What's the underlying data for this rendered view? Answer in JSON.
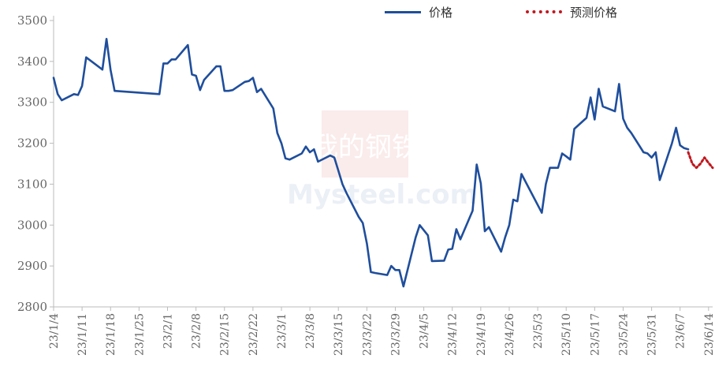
{
  "legend": {
    "price_label": "价格",
    "forecast_label": "预测价格"
  },
  "colors": {
    "price": "#1f4e9c",
    "forecast": "#c0181f",
    "axis": "#bbbbbb",
    "text": "#666666"
  },
  "watermark": {
    "brand_cn": "我的钢铁",
    "brand_en": "Mysteel.com"
  },
  "chart_data": {
    "type": "line",
    "ylim": [
      2800,
      3500
    ],
    "yticks": [
      2800,
      2900,
      3000,
      3100,
      3200,
      3300,
      3400,
      3500
    ],
    "xrange": [
      "2023-01-04",
      "2023-06-15"
    ],
    "xtick_labels": [
      "23/1/4",
      "23/1/11",
      "23/1/18",
      "23/1/25",
      "23/2/1",
      "23/2/8",
      "23/2/15",
      "23/2/22",
      "23/3/1",
      "23/3/8",
      "23/3/15",
      "23/3/22",
      "23/3/29",
      "23/4/5",
      "23/4/12",
      "23/4/19",
      "23/4/26",
      "23/5/3",
      "23/5/10",
      "23/5/17",
      "23/5/24",
      "23/5/31",
      "23/6/7",
      "23/6/14"
    ],
    "xtick_dates": [
      "2023-01-04",
      "2023-01-11",
      "2023-01-18",
      "2023-01-25",
      "2023-02-01",
      "2023-02-08",
      "2023-02-15",
      "2023-02-22",
      "2023-03-01",
      "2023-03-08",
      "2023-03-15",
      "2023-03-22",
      "2023-03-29",
      "2023-04-05",
      "2023-04-12",
      "2023-04-19",
      "2023-04-26",
      "2023-05-03",
      "2023-05-10",
      "2023-05-17",
      "2023-05-24",
      "2023-05-31",
      "2023-06-07",
      "2023-06-14"
    ],
    "series": [
      {
        "name": "价格",
        "style": "solid",
        "points": [
          [
            "2023-01-04",
            3360
          ],
          [
            "2023-01-05",
            3320
          ],
          [
            "2023-01-06",
            3305
          ],
          [
            "2023-01-09",
            3320
          ],
          [
            "2023-01-10",
            3318
          ],
          [
            "2023-01-11",
            3340
          ],
          [
            "2023-01-12",
            3410
          ],
          [
            "2023-01-16",
            3380
          ],
          [
            "2023-01-17",
            3455
          ],
          [
            "2023-01-18",
            3380
          ],
          [
            "2023-01-19",
            3328
          ],
          [
            "2023-01-30",
            3320
          ],
          [
            "2023-01-31",
            3395
          ],
          [
            "2023-02-01",
            3395
          ],
          [
            "2023-02-02",
            3405
          ],
          [
            "2023-02-03",
            3405
          ],
          [
            "2023-02-06",
            3440
          ],
          [
            "2023-02-07",
            3368
          ],
          [
            "2023-02-08",
            3365
          ],
          [
            "2023-02-09",
            3330
          ],
          [
            "2023-02-10",
            3355
          ],
          [
            "2023-02-13",
            3388
          ],
          [
            "2023-02-14",
            3388
          ],
          [
            "2023-02-15",
            3328
          ],
          [
            "2023-02-16",
            3328
          ],
          [
            "2023-02-17",
            3330
          ],
          [
            "2023-02-20",
            3350
          ],
          [
            "2023-02-21",
            3352
          ],
          [
            "2023-02-22",
            3360
          ],
          [
            "2023-02-23",
            3325
          ],
          [
            "2023-02-24",
            3333
          ],
          [
            "2023-02-27",
            3285
          ],
          [
            "2023-02-28",
            3225
          ],
          [
            "2023-03-01",
            3200
          ],
          [
            "2023-03-02",
            3163
          ],
          [
            "2023-03-03",
            3160
          ],
          [
            "2023-03-06",
            3175
          ],
          [
            "2023-03-07",
            3192
          ],
          [
            "2023-03-08",
            3178
          ],
          [
            "2023-03-09",
            3185
          ],
          [
            "2023-03-10",
            3155
          ],
          [
            "2023-03-13",
            3170
          ],
          [
            "2023-03-14",
            3165
          ],
          [
            "2023-03-15",
            3133
          ],
          [
            "2023-03-16",
            3100
          ],
          [
            "2023-03-17",
            3078
          ],
          [
            "2023-03-20",
            3020
          ],
          [
            "2023-03-21",
            3005
          ],
          [
            "2023-03-22",
            2955
          ],
          [
            "2023-03-23",
            2885
          ],
          [
            "2023-03-24",
            2883
          ],
          [
            "2023-03-27",
            2878
          ],
          [
            "2023-03-28",
            2900
          ],
          [
            "2023-03-29",
            2890
          ],
          [
            "2023-03-30",
            2890
          ],
          [
            "2023-03-31",
            2850
          ],
          [
            "2023-04-03",
            2970
          ],
          [
            "2023-04-04",
            3000
          ],
          [
            "2023-04-06",
            2975
          ],
          [
            "2023-04-07",
            2912
          ],
          [
            "2023-04-10",
            2913
          ],
          [
            "2023-04-11",
            2940
          ],
          [
            "2023-04-12",
            2942
          ],
          [
            "2023-04-13",
            2990
          ],
          [
            "2023-04-14",
            2965
          ],
          [
            "2023-04-17",
            3035
          ],
          [
            "2023-04-18",
            3148
          ],
          [
            "2023-04-19",
            3102
          ],
          [
            "2023-04-20",
            2985
          ],
          [
            "2023-04-21",
            2995
          ],
          [
            "2023-04-24",
            2935
          ],
          [
            "2023-04-25",
            2970
          ],
          [
            "2023-04-26",
            3000
          ],
          [
            "2023-04-27",
            3062
          ],
          [
            "2023-04-28",
            3058
          ],
          [
            "2023-04-29",
            3125
          ],
          [
            "2023-05-04",
            3030
          ],
          [
            "2023-05-05",
            3100
          ],
          [
            "2023-05-06",
            3140
          ],
          [
            "2023-05-08",
            3140
          ],
          [
            "2023-05-09",
            3175
          ],
          [
            "2023-05-10",
            3168
          ],
          [
            "2023-05-11",
            3160
          ],
          [
            "2023-05-12",
            3235
          ],
          [
            "2023-05-15",
            3262
          ],
          [
            "2023-05-16",
            3312
          ],
          [
            "2023-05-17",
            3258
          ],
          [
            "2023-05-18",
            3333
          ],
          [
            "2023-05-19",
            3290
          ],
          [
            "2023-05-22",
            3278
          ],
          [
            "2023-05-23",
            3345
          ],
          [
            "2023-05-24",
            3260
          ],
          [
            "2023-05-25",
            3238
          ],
          [
            "2023-05-26",
            3225
          ],
          [
            "2023-05-29",
            3178
          ],
          [
            "2023-05-30",
            3175
          ],
          [
            "2023-05-31",
            3165
          ],
          [
            "2023-06-01",
            3178
          ],
          [
            "2023-06-02",
            3110
          ],
          [
            "2023-06-05",
            3200
          ],
          [
            "2023-06-06",
            3238
          ],
          [
            "2023-06-07",
            3195
          ],
          [
            "2023-06-08",
            3188
          ],
          [
            "2023-06-09",
            3185
          ]
        ]
      },
      {
        "name": "预测价格",
        "style": "dotted",
        "points": [
          [
            "2023-06-09",
            3178
          ],
          [
            "2023-06-10",
            3150
          ],
          [
            "2023-06-11",
            3140
          ],
          [
            "2023-06-12",
            3150
          ],
          [
            "2023-06-13",
            3165
          ],
          [
            "2023-06-14",
            3152
          ],
          [
            "2023-06-15",
            3140
          ]
        ]
      }
    ]
  }
}
